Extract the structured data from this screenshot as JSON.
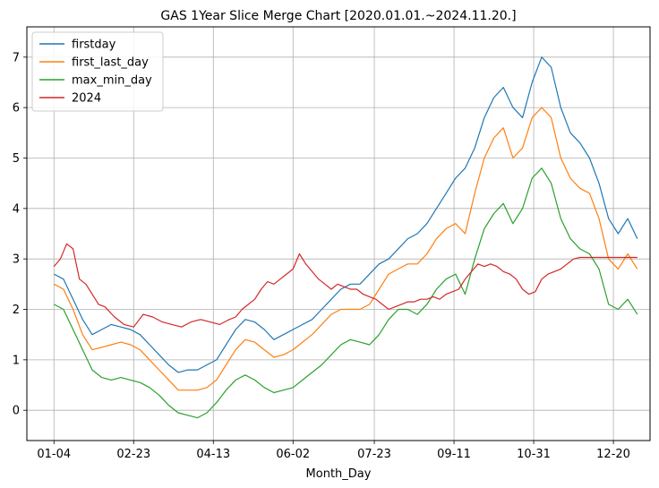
{
  "chart_data": {
    "type": "line",
    "title": "GAS 1Year Slice Merge Chart [2020.01.01.~2024.11.20.]",
    "xlabel": "Month_Day",
    "ylabel": "",
    "x_ticks": [
      "01-04",
      "02-23",
      "04-13",
      "06-02",
      "07-23",
      "09-11",
      "10-31",
      "12-20"
    ],
    "x_tick_days": [
      4,
      54,
      104,
      154,
      205,
      255,
      305,
      355
    ],
    "xlim": [
      -13,
      378
    ],
    "yticks": [
      0,
      1,
      2,
      3,
      4,
      5,
      6,
      7
    ],
    "ylim": [
      -0.6,
      7.6
    ],
    "grid": true,
    "legend_position": "top-left",
    "x_unit": "day of year",
    "series": [
      {
        "name": "firstday",
        "color": "#1f77b4",
        "points": [
          [
            4,
            2.7
          ],
          [
            10,
            2.6
          ],
          [
            16,
            2.2
          ],
          [
            22,
            1.8
          ],
          [
            28,
            1.5
          ],
          [
            34,
            1.6
          ],
          [
            40,
            1.7
          ],
          [
            46,
            1.65
          ],
          [
            52,
            1.6
          ],
          [
            58,
            1.5
          ],
          [
            64,
            1.3
          ],
          [
            70,
            1.1
          ],
          [
            76,
            0.9
          ],
          [
            82,
            0.75
          ],
          [
            88,
            0.8
          ],
          [
            94,
            0.8
          ],
          [
            100,
            0.9
          ],
          [
            106,
            1.0
          ],
          [
            112,
            1.3
          ],
          [
            118,
            1.6
          ],
          [
            124,
            1.8
          ],
          [
            130,
            1.75
          ],
          [
            136,
            1.6
          ],
          [
            142,
            1.4
          ],
          [
            148,
            1.5
          ],
          [
            154,
            1.6
          ],
          [
            160,
            1.7
          ],
          [
            166,
            1.8
          ],
          [
            172,
            2.0
          ],
          [
            178,
            2.2
          ],
          [
            184,
            2.4
          ],
          [
            190,
            2.5
          ],
          [
            196,
            2.5
          ],
          [
            202,
            2.7
          ],
          [
            208,
            2.9
          ],
          [
            214,
            3.0
          ],
          [
            220,
            3.2
          ],
          [
            226,
            3.4
          ],
          [
            232,
            3.5
          ],
          [
            238,
            3.7
          ],
          [
            244,
            4.0
          ],
          [
            250,
            4.3
          ],
          [
            256,
            4.6
          ],
          [
            262,
            4.8
          ],
          [
            268,
            5.2
          ],
          [
            274,
            5.8
          ],
          [
            280,
            6.2
          ],
          [
            286,
            6.4
          ],
          [
            292,
            6.0
          ],
          [
            298,
            5.8
          ],
          [
            304,
            6.5
          ],
          [
            310,
            7.0
          ],
          [
            316,
            6.8
          ],
          [
            322,
            6.0
          ],
          [
            328,
            5.5
          ],
          [
            334,
            5.3
          ],
          [
            340,
            5.0
          ],
          [
            346,
            4.5
          ],
          [
            352,
            3.8
          ],
          [
            358,
            3.5
          ],
          [
            364,
            3.8
          ],
          [
            370,
            3.4
          ]
        ]
      },
      {
        "name": "first_last_day",
        "color": "#ff7f0e",
        "points": [
          [
            4,
            2.5
          ],
          [
            10,
            2.4
          ],
          [
            16,
            2.0
          ],
          [
            22,
            1.5
          ],
          [
            28,
            1.2
          ],
          [
            34,
            1.25
          ],
          [
            40,
            1.3
          ],
          [
            46,
            1.35
          ],
          [
            52,
            1.3
          ],
          [
            58,
            1.2
          ],
          [
            64,
            1.0
          ],
          [
            70,
            0.8
          ],
          [
            76,
            0.6
          ],
          [
            82,
            0.4
          ],
          [
            88,
            0.4
          ],
          [
            94,
            0.4
          ],
          [
            100,
            0.45
          ],
          [
            106,
            0.6
          ],
          [
            112,
            0.9
          ],
          [
            118,
            1.2
          ],
          [
            124,
            1.4
          ],
          [
            130,
            1.35
          ],
          [
            136,
            1.2
          ],
          [
            142,
            1.05
          ],
          [
            148,
            1.1
          ],
          [
            154,
            1.2
          ],
          [
            160,
            1.35
          ],
          [
            166,
            1.5
          ],
          [
            172,
            1.7
          ],
          [
            178,
            1.9
          ],
          [
            184,
            2.0
          ],
          [
            190,
            2.0
          ],
          [
            196,
            2.0
          ],
          [
            202,
            2.1
          ],
          [
            208,
            2.4
          ],
          [
            214,
            2.7
          ],
          [
            220,
            2.8
          ],
          [
            226,
            2.9
          ],
          [
            232,
            2.9
          ],
          [
            238,
            3.1
          ],
          [
            244,
            3.4
          ],
          [
            250,
            3.6
          ],
          [
            256,
            3.7
          ],
          [
            262,
            3.5
          ],
          [
            268,
            4.3
          ],
          [
            274,
            5.0
          ],
          [
            280,
            5.4
          ],
          [
            286,
            5.6
          ],
          [
            292,
            5.0
          ],
          [
            298,
            5.2
          ],
          [
            304,
            5.8
          ],
          [
            310,
            6.0
          ],
          [
            316,
            5.8
          ],
          [
            322,
            5.0
          ],
          [
            328,
            4.6
          ],
          [
            334,
            4.4
          ],
          [
            340,
            4.3
          ],
          [
            346,
            3.8
          ],
          [
            352,
            3.0
          ],
          [
            358,
            2.8
          ],
          [
            364,
            3.1
          ],
          [
            370,
            2.8
          ]
        ]
      },
      {
        "name": "max_min_day",
        "color": "#2ca02c",
        "points": [
          [
            4,
            2.1
          ],
          [
            10,
            2.0
          ],
          [
            16,
            1.6
          ],
          [
            22,
            1.2
          ],
          [
            28,
            0.8
          ],
          [
            34,
            0.65
          ],
          [
            40,
            0.6
          ],
          [
            46,
            0.65
          ],
          [
            52,
            0.6
          ],
          [
            58,
            0.55
          ],
          [
            64,
            0.45
          ],
          [
            70,
            0.3
          ],
          [
            76,
            0.1
          ],
          [
            82,
            -0.05
          ],
          [
            88,
            -0.1
          ],
          [
            94,
            -0.15
          ],
          [
            100,
            -0.05
          ],
          [
            106,
            0.15
          ],
          [
            112,
            0.4
          ],
          [
            118,
            0.6
          ],
          [
            124,
            0.7
          ],
          [
            130,
            0.6
          ],
          [
            136,
            0.45
          ],
          [
            142,
            0.35
          ],
          [
            148,
            0.4
          ],
          [
            154,
            0.45
          ],
          [
            160,
            0.6
          ],
          [
            166,
            0.75
          ],
          [
            172,
            0.9
          ],
          [
            178,
            1.1
          ],
          [
            184,
            1.3
          ],
          [
            190,
            1.4
          ],
          [
            196,
            1.35
          ],
          [
            202,
            1.3
          ],
          [
            208,
            1.5
          ],
          [
            214,
            1.8
          ],
          [
            220,
            2.0
          ],
          [
            226,
            2.0
          ],
          [
            232,
            1.9
          ],
          [
            238,
            2.1
          ],
          [
            244,
            2.4
          ],
          [
            250,
            2.6
          ],
          [
            256,
            2.7
          ],
          [
            262,
            2.3
          ],
          [
            268,
            3.0
          ],
          [
            274,
            3.6
          ],
          [
            280,
            3.9
          ],
          [
            286,
            4.1
          ],
          [
            292,
            3.7
          ],
          [
            298,
            4.0
          ],
          [
            304,
            4.6
          ],
          [
            310,
            4.8
          ],
          [
            316,
            4.5
          ],
          [
            322,
            3.8
          ],
          [
            328,
            3.4
          ],
          [
            334,
            3.2
          ],
          [
            340,
            3.1
          ],
          [
            346,
            2.8
          ],
          [
            352,
            2.1
          ],
          [
            358,
            2.0
          ],
          [
            364,
            2.2
          ],
          [
            370,
            1.9
          ]
        ]
      },
      {
        "name": "2024",
        "color": "#d62728",
        "points": [
          [
            4,
            2.85
          ],
          [
            8,
            3.0
          ],
          [
            12,
            3.3
          ],
          [
            16,
            3.2
          ],
          [
            20,
            2.6
          ],
          [
            24,
            2.5
          ],
          [
            28,
            2.3
          ],
          [
            32,
            2.1
          ],
          [
            36,
            2.05
          ],
          [
            42,
            1.85
          ],
          [
            48,
            1.7
          ],
          [
            54,
            1.65
          ],
          [
            60,
            1.9
          ],
          [
            66,
            1.85
          ],
          [
            72,
            1.75
          ],
          [
            78,
            1.7
          ],
          [
            84,
            1.65
          ],
          [
            90,
            1.75
          ],
          [
            96,
            1.8
          ],
          [
            102,
            1.75
          ],
          [
            108,
            1.7
          ],
          [
            114,
            1.8
          ],
          [
            118,
            1.85
          ],
          [
            122,
            2.0
          ],
          [
            126,
            2.1
          ],
          [
            130,
            2.2
          ],
          [
            134,
            2.4
          ],
          [
            138,
            2.55
          ],
          [
            142,
            2.5
          ],
          [
            146,
            2.6
          ],
          [
            150,
            2.7
          ],
          [
            154,
            2.8
          ],
          [
            158,
            3.1
          ],
          [
            162,
            2.9
          ],
          [
            166,
            2.75
          ],
          [
            170,
            2.6
          ],
          [
            174,
            2.5
          ],
          [
            178,
            2.4
          ],
          [
            182,
            2.5
          ],
          [
            186,
            2.45
          ],
          [
            190,
            2.4
          ],
          [
            194,
            2.4
          ],
          [
            198,
            2.3
          ],
          [
            202,
            2.25
          ],
          [
            206,
            2.2
          ],
          [
            210,
            2.1
          ],
          [
            214,
            2.0
          ],
          [
            218,
            2.05
          ],
          [
            222,
            2.1
          ],
          [
            226,
            2.15
          ],
          [
            230,
            2.15
          ],
          [
            234,
            2.2
          ],
          [
            238,
            2.2
          ],
          [
            242,
            2.25
          ],
          [
            246,
            2.2
          ],
          [
            250,
            2.3
          ],
          [
            254,
            2.35
          ],
          [
            258,
            2.4
          ],
          [
            262,
            2.6
          ],
          [
            266,
            2.75
          ],
          [
            270,
            2.9
          ],
          [
            274,
            2.85
          ],
          [
            278,
            2.9
          ],
          [
            282,
            2.85
          ],
          [
            286,
            2.75
          ],
          [
            290,
            2.7
          ],
          [
            294,
            2.6
          ],
          [
            298,
            2.4
          ],
          [
            302,
            2.3
          ],
          [
            306,
            2.35
          ],
          [
            310,
            2.6
          ],
          [
            314,
            2.7
          ],
          [
            318,
            2.75
          ],
          [
            322,
            2.8
          ],
          [
            326,
            2.9
          ],
          [
            330,
            3.0
          ],
          [
            334,
            3.03
          ],
          [
            340,
            3.03
          ],
          [
            346,
            3.03
          ],
          [
            352,
            3.03
          ],
          [
            358,
            3.03
          ],
          [
            364,
            3.03
          ],
          [
            370,
            3.03
          ]
        ]
      }
    ]
  }
}
